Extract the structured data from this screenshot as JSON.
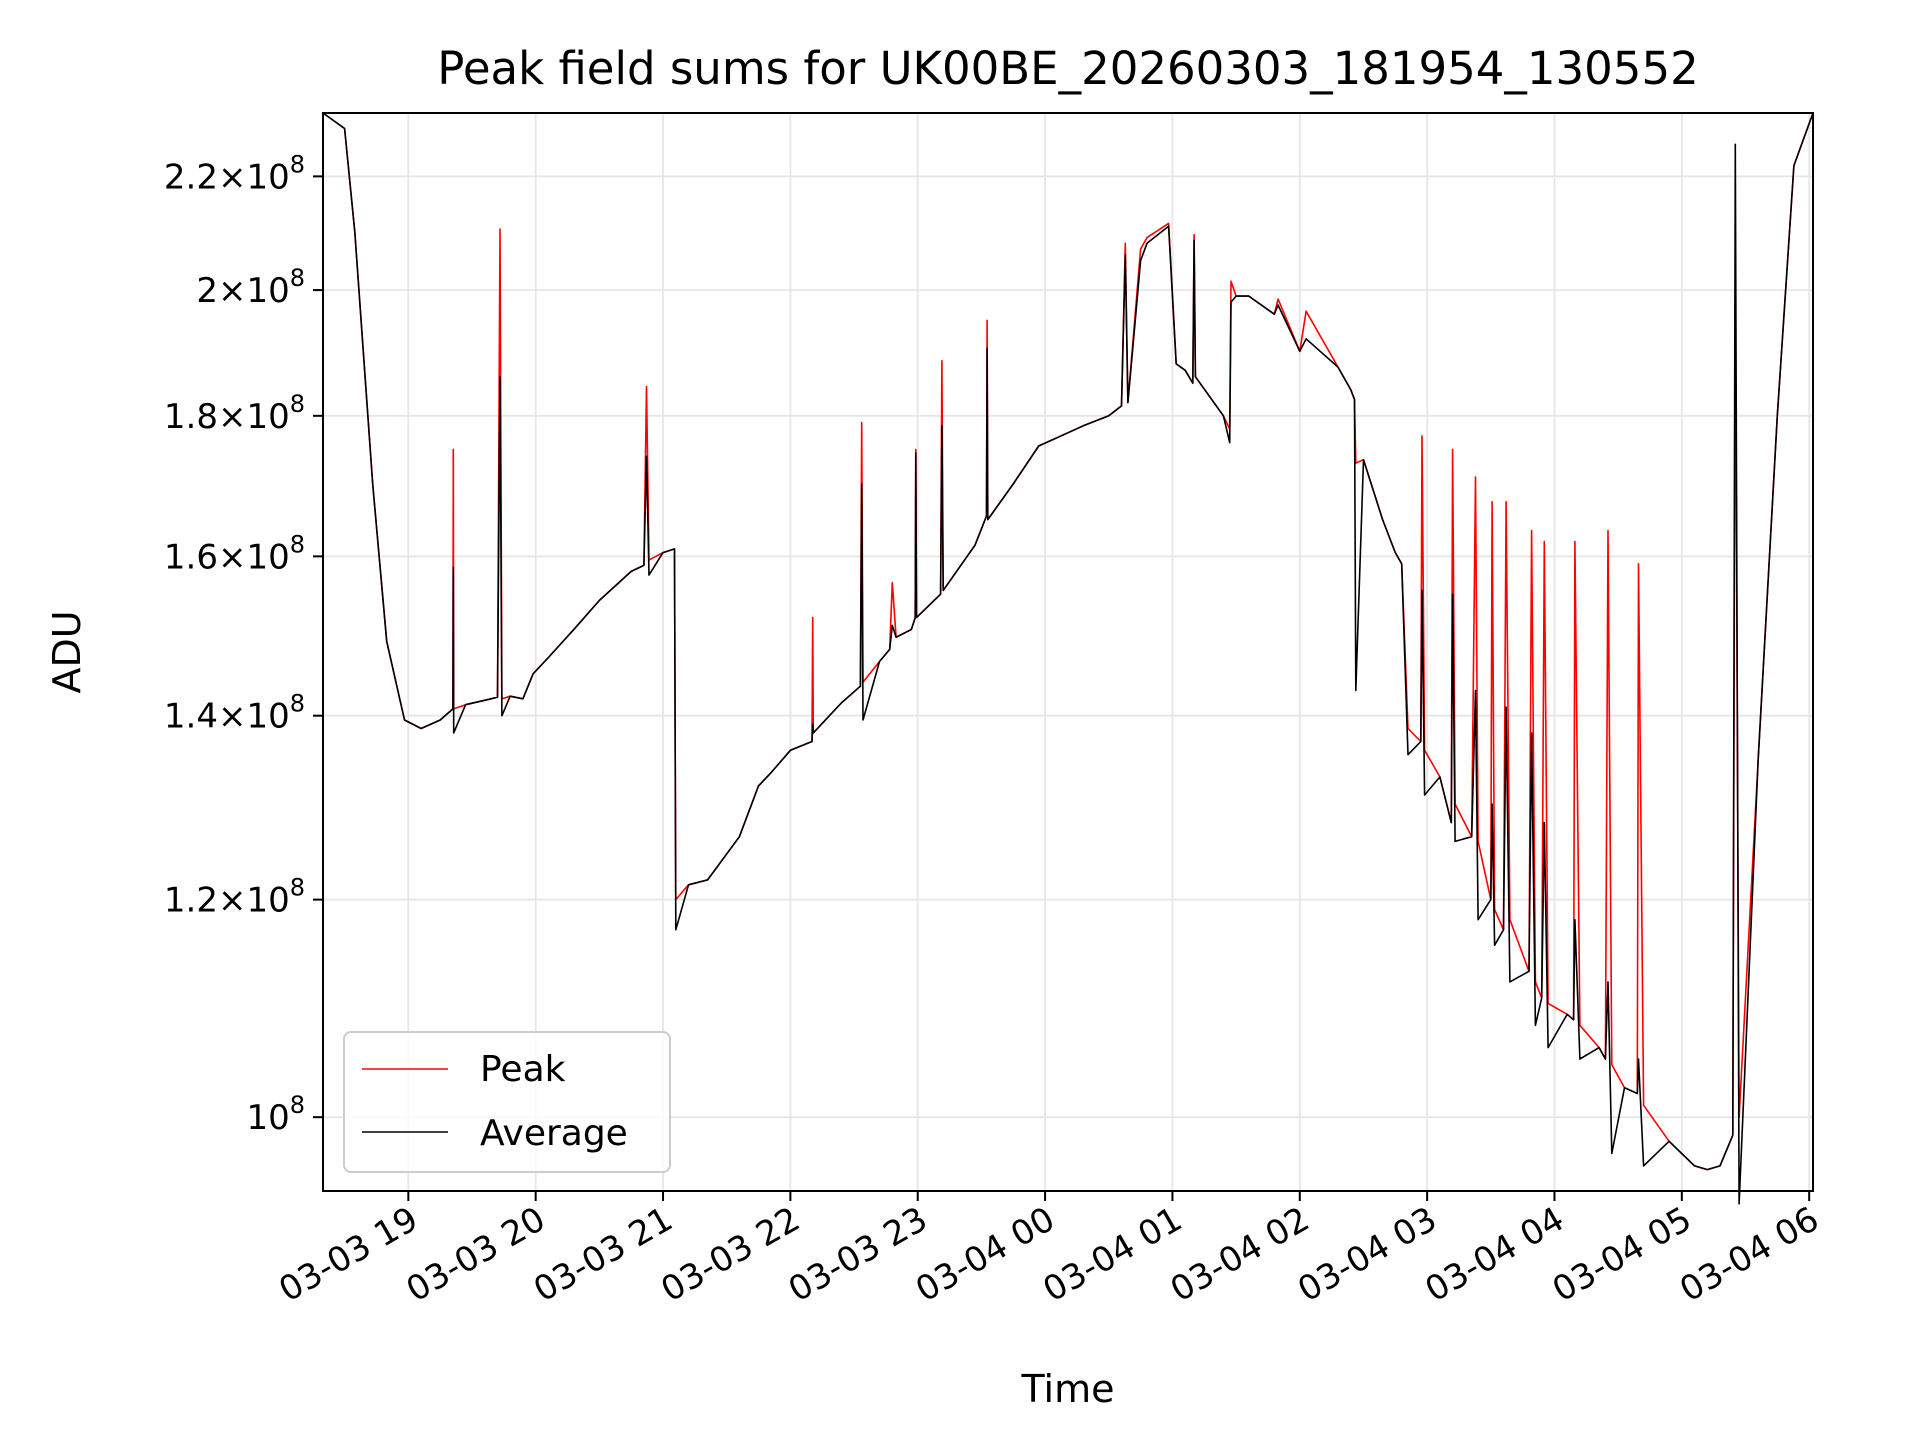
{
  "chart_data": {
    "type": "line",
    "title": "Peak field sums for UK00BE_20260303_181954_130552",
    "xlabel": "Time",
    "ylabel": "ADU",
    "yscale": "log",
    "ylim": [
      94000000,
      232000000
    ],
    "xlim_hours_from_2026_03_03_18_00": [
      18.33,
      30.03
    ],
    "grid": true,
    "legend_position": "lower-left",
    "x_ticks": [
      {
        "label": "03-03 19",
        "hour": 19
      },
      {
        "label": "03-03 20",
        "hour": 20
      },
      {
        "label": "03-03 21",
        "hour": 21
      },
      {
        "label": "03-03 22",
        "hour": 22
      },
      {
        "label": "03-03 23",
        "hour": 23
      },
      {
        "label": "03-04 00",
        "hour": 24
      },
      {
        "label": "03-04 01",
        "hour": 25
      },
      {
        "label": "03-04 02",
        "hour": 26
      },
      {
        "label": "03-04 03",
        "hour": 27
      },
      {
        "label": "03-04 04",
        "hour": 28
      },
      {
        "label": "03-04 05",
        "hour": 29
      },
      {
        "label": "03-04 06",
        "hour": 30
      }
    ],
    "y_ticks": [
      {
        "mant": "",
        "exp": "8",
        "value": 100000000
      },
      {
        "mant": "1.2",
        "exp": "8",
        "value": 120000000
      },
      {
        "mant": "1.4",
        "exp": "8",
        "value": 140000000
      },
      {
        "mant": "1.6",
        "exp": "8",
        "value": 160000000
      },
      {
        "mant": "1.8",
        "exp": "8",
        "value": 180000000
      },
      {
        "mant": "2",
        "exp": "8",
        "value": 200000000
      },
      {
        "mant": "2.2",
        "exp": "8",
        "value": 220000000
      }
    ],
    "series": [
      {
        "name": "Peak",
        "color": "#ff0000",
        "points": [
          [
            18.33,
            232
          ],
          [
            18.5,
            229
          ],
          [
            18.58,
            210
          ],
          [
            18.72,
            170
          ],
          [
            18.83,
            149
          ],
          [
            18.97,
            139.5
          ],
          [
            19.1,
            138.5
          ],
          [
            19.25,
            139.5
          ],
          [
            19.35,
            140.8
          ],
          [
            19.353,
            175
          ],
          [
            19.356,
            140.8
          ],
          [
            19.45,
            141.3
          ],
          [
            19.65,
            142
          ],
          [
            19.7,
            142.2
          ],
          [
            19.72,
            210.5
          ],
          [
            19.735,
            142
          ],
          [
            19.8,
            142.3
          ],
          [
            19.9,
            142
          ],
          [
            19.98,
            145
          ],
          [
            20.1,
            147
          ],
          [
            20.3,
            150.5
          ],
          [
            20.5,
            154.2
          ],
          [
            20.75,
            158
          ],
          [
            20.85,
            158.8
          ],
          [
            20.87,
            184.5
          ],
          [
            20.89,
            159.5
          ],
          [
            21.0,
            160.5
          ],
          [
            21.09,
            161
          ],
          [
            21.1,
            120
          ],
          [
            21.2,
            121.5
          ],
          [
            21.35,
            122
          ],
          [
            21.6,
            126.5
          ],
          [
            21.75,
            132
          ],
          [
            21.85,
            133.5
          ],
          [
            22.0,
            136
          ],
          [
            22.17,
            137
          ],
          [
            22.175,
            152
          ],
          [
            22.18,
            138
          ],
          [
            22.4,
            141.5
          ],
          [
            22.55,
            143.5
          ],
          [
            22.56,
            179
          ],
          [
            22.57,
            144
          ],
          [
            22.7,
            146.5
          ],
          [
            22.78,
            148
          ],
          [
            22.8,
            156.5
          ],
          [
            22.83,
            149.5
          ],
          [
            22.95,
            150.5
          ],
          [
            22.98,
            152
          ],
          [
            22.985,
            175
          ],
          [
            22.99,
            152
          ],
          [
            23.18,
            155
          ],
          [
            23.19,
            188.5
          ],
          [
            23.2,
            155.5
          ],
          [
            23.45,
            161.5
          ],
          [
            23.54,
            165.5
          ],
          [
            23.545,
            195
          ],
          [
            23.55,
            165
          ],
          [
            23.75,
            170
          ],
          [
            23.95,
            175.5
          ],
          [
            24.3,
            178.5
          ],
          [
            24.5,
            180
          ],
          [
            24.6,
            181.5
          ],
          [
            24.63,
            208
          ],
          [
            24.65,
            182
          ],
          [
            24.75,
            207
          ],
          [
            24.8,
            209
          ],
          [
            24.97,
            211.5
          ],
          [
            25.03,
            188
          ],
          [
            25.1,
            187
          ],
          [
            25.16,
            185
          ],
          [
            25.17,
            209.5
          ],
          [
            25.18,
            186
          ],
          [
            25.4,
            180
          ],
          [
            25.45,
            178
          ],
          [
            25.46,
            201.5
          ],
          [
            25.5,
            199
          ],
          [
            25.6,
            199
          ],
          [
            25.8,
            196
          ],
          [
            25.83,
            198.5
          ],
          [
            26.0,
            190
          ],
          [
            26.05,
            196.5
          ],
          [
            26.3,
            187.5
          ],
          [
            26.4,
            184
          ],
          [
            26.43,
            182.5
          ],
          [
            26.44,
            173
          ],
          [
            26.5,
            173.5
          ],
          [
            26.65,
            165
          ],
          [
            26.75,
            160.5
          ],
          [
            26.8,
            159
          ],
          [
            26.85,
            138.5
          ],
          [
            26.95,
            137
          ],
          [
            26.96,
            177
          ],
          [
            26.98,
            136
          ],
          [
            27.1,
            133
          ],
          [
            27.19,
            128
          ],
          [
            27.2,
            175
          ],
          [
            27.22,
            130
          ],
          [
            27.35,
            126.5
          ],
          [
            27.38,
            171
          ],
          [
            27.4,
            126
          ],
          [
            27.5,
            120
          ],
          [
            27.51,
            167.5
          ],
          [
            27.53,
            119
          ],
          [
            27.6,
            117
          ],
          [
            27.62,
            167.5
          ],
          [
            27.65,
            118
          ],
          [
            27.8,
            113
          ],
          [
            27.82,
            163.5
          ],
          [
            27.85,
            112
          ],
          [
            27.9,
            110.5
          ],
          [
            27.92,
            162
          ],
          [
            27.95,
            110
          ],
          [
            28.1,
            109
          ],
          [
            28.15,
            108.5
          ],
          [
            28.16,
            162
          ],
          [
            28.2,
            108
          ],
          [
            28.35,
            106
          ],
          [
            28.4,
            105
          ],
          [
            28.42,
            163.5
          ],
          [
            28.45,
            104.5
          ],
          [
            28.55,
            102.5
          ],
          [
            28.65,
            102
          ],
          [
            28.66,
            159
          ],
          [
            28.7,
            101
          ],
          [
            28.9,
            98
          ],
          [
            29.1,
            96
          ],
          [
            29.2,
            95.7
          ],
          [
            29.3,
            96
          ],
          [
            29.4,
            98.5
          ],
          [
            29.42,
            203
          ],
          [
            29.45,
            100
          ],
          [
            29.6,
            135
          ],
          [
            29.75,
            180
          ],
          [
            29.88,
            222
          ],
          [
            30.03,
            232
          ]
        ]
      },
      {
        "name": "Average",
        "color": "#000000",
        "points": [
          [
            18.33,
            232
          ],
          [
            18.5,
            229
          ],
          [
            18.58,
            210
          ],
          [
            18.72,
            170
          ],
          [
            18.83,
            149
          ],
          [
            18.97,
            139.5
          ],
          [
            19.1,
            138.5
          ],
          [
            19.25,
            139.5
          ],
          [
            19.35,
            140.8
          ],
          [
            19.353,
            158.5
          ],
          [
            19.356,
            138
          ],
          [
            19.45,
            141.3
          ],
          [
            19.65,
            142
          ],
          [
            19.7,
            142.2
          ],
          [
            19.72,
            186
          ],
          [
            19.735,
            140
          ],
          [
            19.8,
            142.3
          ],
          [
            19.9,
            142
          ],
          [
            19.98,
            145
          ],
          [
            20.1,
            147
          ],
          [
            20.3,
            150.5
          ],
          [
            20.5,
            154.2
          ],
          [
            20.75,
            158
          ],
          [
            20.85,
            158.8
          ],
          [
            20.87,
            174
          ],
          [
            20.89,
            157.5
          ],
          [
            21.0,
            160.5
          ],
          [
            21.09,
            161
          ],
          [
            21.1,
            117
          ],
          [
            21.2,
            121.5
          ],
          [
            21.35,
            122
          ],
          [
            21.6,
            126.5
          ],
          [
            21.75,
            132
          ],
          [
            21.85,
            133.5
          ],
          [
            22.0,
            136
          ],
          [
            22.17,
            137
          ],
          [
            22.175,
            139
          ],
          [
            22.18,
            138
          ],
          [
            22.4,
            141.5
          ],
          [
            22.55,
            143.5
          ],
          [
            22.56,
            170
          ],
          [
            22.57,
            139.5
          ],
          [
            22.7,
            146.5
          ],
          [
            22.78,
            148
          ],
          [
            22.8,
            151
          ],
          [
            22.83,
            149.5
          ],
          [
            22.95,
            150.5
          ],
          [
            22.98,
            152
          ],
          [
            22.985,
            174.5
          ],
          [
            22.99,
            152
          ],
          [
            23.18,
            155
          ],
          [
            23.19,
            178.5
          ],
          [
            23.2,
            155.5
          ],
          [
            23.45,
            161.5
          ],
          [
            23.54,
            165.5
          ],
          [
            23.545,
            190.5
          ],
          [
            23.55,
            165
          ],
          [
            23.75,
            170
          ],
          [
            23.95,
            175.5
          ],
          [
            24.3,
            178.5
          ],
          [
            24.5,
            180
          ],
          [
            24.6,
            181.5
          ],
          [
            24.63,
            206
          ],
          [
            24.65,
            182
          ],
          [
            24.75,
            205
          ],
          [
            24.8,
            208
          ],
          [
            24.97,
            211
          ],
          [
            25.03,
            188
          ],
          [
            25.1,
            187
          ],
          [
            25.16,
            185
          ],
          [
            25.17,
            208.5
          ],
          [
            25.18,
            186
          ],
          [
            25.4,
            180
          ],
          [
            25.45,
            176
          ],
          [
            25.46,
            198
          ],
          [
            25.5,
            199
          ],
          [
            25.6,
            199
          ],
          [
            25.8,
            196
          ],
          [
            25.83,
            197.5
          ],
          [
            26.0,
            190
          ],
          [
            26.05,
            192
          ],
          [
            26.3,
            187.5
          ],
          [
            26.4,
            184
          ],
          [
            26.43,
            182.5
          ],
          [
            26.44,
            143
          ],
          [
            26.5,
            173.5
          ],
          [
            26.65,
            165
          ],
          [
            26.75,
            160.5
          ],
          [
            26.8,
            159
          ],
          [
            26.85,
            135.5
          ],
          [
            26.95,
            137
          ],
          [
            26.96,
            155.5
          ],
          [
            26.98,
            131
          ],
          [
            27.1,
            133
          ],
          [
            27.19,
            128
          ],
          [
            27.2,
            155
          ],
          [
            27.22,
            126
          ],
          [
            27.35,
            126.5
          ],
          [
            27.38,
            143
          ],
          [
            27.4,
            118
          ],
          [
            27.5,
            120
          ],
          [
            27.51,
            130
          ],
          [
            27.53,
            115.5
          ],
          [
            27.6,
            117
          ],
          [
            27.62,
            141
          ],
          [
            27.65,
            112
          ],
          [
            27.8,
            113
          ],
          [
            27.82,
            138
          ],
          [
            27.85,
            108
          ],
          [
            27.9,
            110.5
          ],
          [
            27.92,
            128
          ],
          [
            27.95,
            106
          ],
          [
            28.1,
            109
          ],
          [
            28.15,
            108.5
          ],
          [
            28.16,
            118
          ],
          [
            28.2,
            105
          ],
          [
            28.35,
            106
          ],
          [
            28.4,
            105
          ],
          [
            28.42,
            112
          ],
          [
            28.45,
            97
          ],
          [
            28.55,
            102.5
          ],
          [
            28.65,
            102
          ],
          [
            28.66,
            105
          ],
          [
            28.7,
            96
          ],
          [
            28.9,
            98
          ],
          [
            29.1,
            96
          ],
          [
            29.2,
            95.7
          ],
          [
            29.3,
            96
          ],
          [
            29.4,
            98.5
          ],
          [
            29.42,
            226
          ],
          [
            29.45,
            93
          ],
          [
            29.6,
            135
          ],
          [
            29.75,
            180
          ],
          [
            29.88,
            222
          ],
          [
            30.03,
            232
          ]
        ]
      }
    ]
  }
}
